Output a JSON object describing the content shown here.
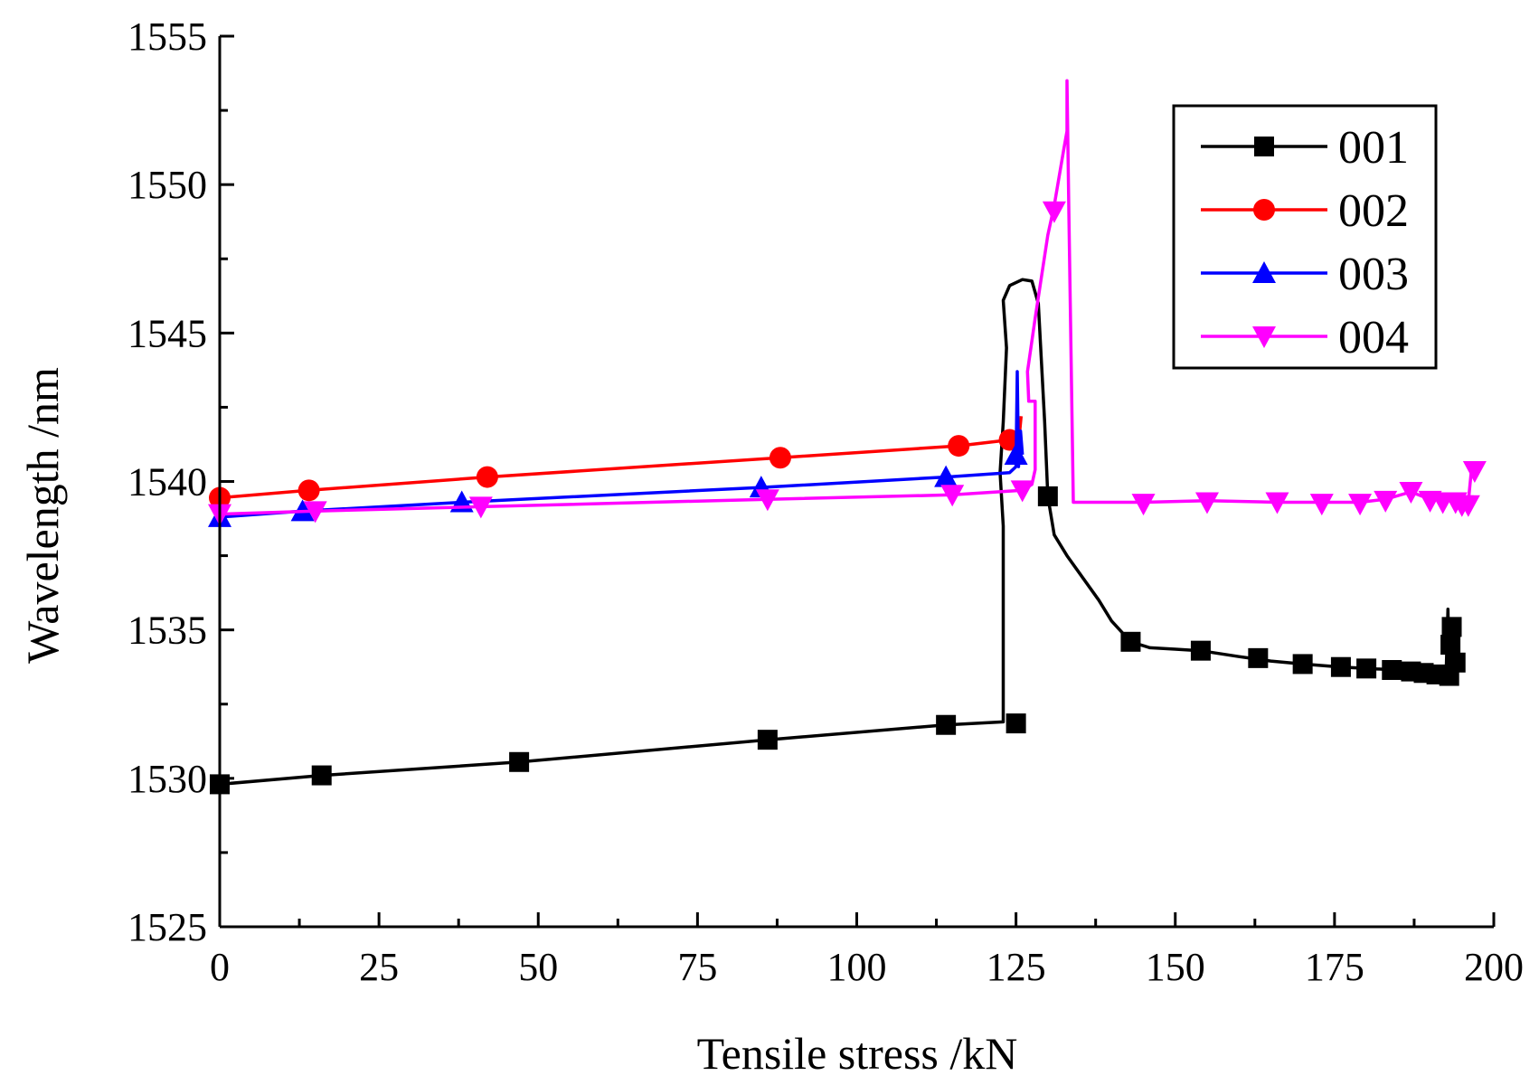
{
  "chart_data": {
    "type": "line",
    "title": "",
    "xlabel": "Tensile stress /kN",
    "ylabel": "Wavelength /nm",
    "xlim": [
      0,
      200
    ],
    "ylim": [
      1525,
      1555
    ],
    "x_major_ticks": [
      0,
      25,
      50,
      75,
      100,
      125,
      150,
      175,
      200
    ],
    "x_tick_labels": [
      "0",
      "25",
      "50",
      "75",
      "100",
      "125",
      "150",
      "175",
      "200"
    ],
    "y_major_ticks": [
      1525,
      1530,
      1535,
      1540,
      1545,
      1550,
      1555
    ],
    "y_tick_labels": [
      "1525",
      "1530",
      "1535",
      "1540",
      "1545",
      "1550",
      "1555"
    ],
    "grid": false,
    "legend_position": "top-right",
    "series": [
      {
        "name": "001",
        "color": "#000000",
        "marker": "square",
        "line": [
          [
            0,
            1529.8
          ],
          [
            16,
            1530.1
          ],
          [
            47,
            1530.55
          ],
          [
            86,
            1531.3
          ],
          [
            114,
            1531.8
          ],
          [
            123,
            1531.9
          ],
          [
            123,
            1538.5
          ],
          [
            122.5,
            1540.3
          ],
          [
            123,
            1542
          ],
          [
            123.5,
            1544.5
          ],
          [
            123,
            1546.1
          ],
          [
            124,
            1546.6
          ],
          [
            126,
            1546.8
          ],
          [
            127.5,
            1546.75
          ],
          [
            128.5,
            1546
          ],
          [
            129,
            1544
          ],
          [
            129.5,
            1542
          ],
          [
            130,
            1539.5
          ],
          [
            131,
            1538.2
          ],
          [
            133,
            1537.5
          ],
          [
            135,
            1536.9
          ],
          [
            138,
            1536
          ],
          [
            140,
            1535.3
          ],
          [
            143,
            1534.6
          ],
          [
            146,
            1534.4
          ],
          [
            150,
            1534.35
          ],
          [
            154,
            1534.3
          ],
          [
            160,
            1534.1
          ],
          [
            165,
            1533.95
          ],
          [
            170,
            1533.85
          ],
          [
            176,
            1533.75
          ],
          [
            180,
            1533.7
          ],
          [
            185,
            1533.65
          ],
          [
            190,
            1533.55
          ],
          [
            192.5,
            1533.45
          ],
          [
            192.8,
            1535.7
          ],
          [
            193,
            1533.5
          ],
          [
            193.3,
            1535.2
          ],
          [
            193.5,
            1533.5
          ],
          [
            194,
            1533.85
          ]
        ],
        "markers": [
          [
            0,
            1529.8
          ],
          [
            16,
            1530.1
          ],
          [
            47,
            1530.55
          ],
          [
            86,
            1531.3
          ],
          [
            114,
            1531.8
          ],
          [
            125,
            1531.85
          ],
          [
            130,
            1539.5
          ],
          [
            143,
            1534.6
          ],
          [
            154,
            1534.3
          ],
          [
            163,
            1534.05
          ],
          [
            170,
            1533.85
          ],
          [
            176,
            1533.75
          ],
          [
            180,
            1533.7
          ],
          [
            184,
            1533.65
          ],
          [
            187,
            1533.6
          ],
          [
            189,
            1533.55
          ],
          [
            191,
            1533.5
          ],
          [
            193,
            1533.45
          ],
          [
            193.2,
            1534.5
          ],
          [
            193.4,
            1535.1
          ],
          [
            194,
            1533.9
          ]
        ]
      },
      {
        "name": "002",
        "color": "#ff0000",
        "marker": "circle",
        "line": [
          [
            0,
            1539.45
          ],
          [
            14,
            1539.7
          ],
          [
            42,
            1540.15
          ],
          [
            88,
            1540.8
          ],
          [
            116,
            1541.2
          ],
          [
            124,
            1541.4
          ],
          [
            125.5,
            1541.5
          ],
          [
            125.8,
            1542.2
          ]
        ],
        "markers": [
          [
            0,
            1539.45
          ],
          [
            14,
            1539.7
          ],
          [
            42,
            1540.15
          ],
          [
            88,
            1540.8
          ],
          [
            116,
            1541.2
          ],
          [
            124,
            1541.4
          ]
        ]
      },
      {
        "name": "003",
        "color": "#0000ff",
        "marker": "triangle-up",
        "line": [
          [
            0,
            1538.8
          ],
          [
            13,
            1539.0
          ],
          [
            38,
            1539.3
          ],
          [
            85,
            1539.8
          ],
          [
            114,
            1540.15
          ],
          [
            124,
            1540.3
          ],
          [
            125,
            1540.5
          ],
          [
            125.2,
            1543.7
          ],
          [
            125.4,
            1540.5
          ],
          [
            125.7,
            1541.7
          ],
          [
            126,
            1540.9
          ]
        ],
        "markers": [
          [
            0,
            1538.8
          ],
          [
            13,
            1539.0
          ],
          [
            38,
            1539.3
          ],
          [
            85,
            1539.8
          ],
          [
            114,
            1540.15
          ],
          [
            125,
            1540.9
          ]
        ]
      },
      {
        "name": "004",
        "color": "#ff00ff",
        "marker": "triangle-down",
        "line": [
          [
            0,
            1538.9
          ],
          [
            15,
            1539.0
          ],
          [
            41,
            1539.15
          ],
          [
            86,
            1539.4
          ],
          [
            115,
            1539.55
          ],
          [
            126,
            1539.7
          ],
          [
            127.5,
            1539.9
          ],
          [
            128,
            1540.4
          ],
          [
            128,
            1542.7
          ],
          [
            127,
            1542.7
          ],
          [
            126.8,
            1543.7
          ],
          [
            128,
            1545.5
          ],
          [
            130,
            1548.3
          ],
          [
            131,
            1549.3
          ],
          [
            132.5,
            1551.2
          ],
          [
            133,
            1551.8
          ],
          [
            133,
            1553.5
          ],
          [
            133.3,
            1549
          ],
          [
            134,
            1539.3
          ],
          [
            145,
            1539.3
          ],
          [
            155,
            1539.35
          ],
          [
            166,
            1539.3
          ],
          [
            173,
            1539.3
          ],
          [
            179,
            1539.3
          ],
          [
            183,
            1539.4
          ],
          [
            187,
            1539.65
          ],
          [
            190,
            1539.4
          ],
          [
            193,
            1539.35
          ],
          [
            195,
            1539.35
          ],
          [
            196,
            1539.3
          ],
          [
            196.5,
            1540.4
          ],
          [
            197,
            1540.4
          ]
        ],
        "markers": [
          [
            0,
            1538.9
          ],
          [
            15,
            1539.0
          ],
          [
            41,
            1539.15
          ],
          [
            86,
            1539.4
          ],
          [
            115,
            1539.55
          ],
          [
            126,
            1539.7
          ],
          [
            131,
            1549.1
          ],
          [
            145,
            1539.25
          ],
          [
            155,
            1539.3
          ],
          [
            166,
            1539.3
          ],
          [
            173,
            1539.25
          ],
          [
            179,
            1539.25
          ],
          [
            183,
            1539.35
          ],
          [
            187,
            1539.65
          ],
          [
            190,
            1539.35
          ],
          [
            192,
            1539.3
          ],
          [
            194,
            1539.3
          ],
          [
            195,
            1539.2
          ],
          [
            196,
            1539.2
          ],
          [
            197,
            1540.35
          ]
        ]
      }
    ]
  }
}
